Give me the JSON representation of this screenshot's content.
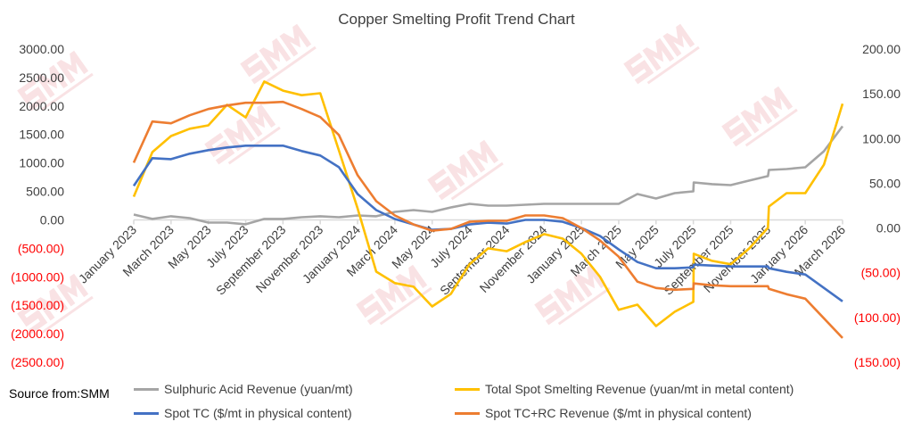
{
  "chart_data": {
    "type": "line",
    "title": "Copper Smelting Profit Trend Chart",
    "x_unit": "months since January 2023",
    "x_tick_labels": [
      "January 2023",
      "March 2023",
      "May 2023",
      "July 2023",
      "September 2023",
      "November 2023",
      "January 2024",
      "March 2024",
      "May 2024",
      "July 2024",
      "September 2024",
      "November 2024",
      "January 2025",
      "March 2025",
      "May 2025",
      "July 2025",
      "September 2025",
      "November 2025",
      "January 2026",
      "March 2026"
    ],
    "left_axis": {
      "min": -2500,
      "max": 3000,
      "step": 500,
      "labels": [
        "3000.00",
        "2500.00",
        "2000.00",
        "1500.00",
        "1000.00",
        "500.00",
        "0.00",
        "(500.00)",
        "(1000.00)",
        "(1500.00)",
        "(2000.00)",
        "(2500.00)"
      ]
    },
    "right_axis": {
      "min": -150,
      "max": 200,
      "step": 50,
      "labels": [
        "200.00",
        "150.00",
        "100.00",
        "50.00",
        "0.00",
        "(50.00)",
        "(100.00)",
        "(150.00)"
      ]
    },
    "series": [
      {
        "name": "Sulphuric Acid Revenue (yuan/mt)",
        "axis": "left",
        "color": "#A5A5A5",
        "points": [
          [
            0,
            94
          ],
          [
            1,
            16
          ],
          [
            2,
            63
          ],
          [
            3,
            31
          ],
          [
            4,
            -47
          ],
          [
            5,
            -47
          ],
          [
            6,
            -78
          ],
          [
            7,
            16
          ],
          [
            8,
            16
          ],
          [
            9,
            47
          ],
          [
            10,
            63
          ],
          [
            11,
            47
          ],
          [
            12,
            78
          ],
          [
            13,
            63
          ],
          [
            14,
            141
          ],
          [
            15,
            172
          ],
          [
            16,
            141
          ],
          [
            17,
            219
          ],
          [
            18,
            282
          ],
          [
            19,
            250
          ],
          [
            20,
            250
          ],
          [
            21,
            266
          ],
          [
            22,
            282
          ],
          [
            23,
            282
          ],
          [
            24,
            282
          ],
          [
            25,
            282
          ],
          [
            26,
            282
          ],
          [
            27,
            454
          ],
          [
            28,
            376
          ],
          [
            29,
            470
          ],
          [
            30,
            501
          ],
          [
            30.02,
            658
          ],
          [
            31,
            627
          ],
          [
            32,
            611
          ],
          [
            33,
            690
          ],
          [
            34,
            768
          ],
          [
            34.05,
            877
          ],
          [
            35,
            893
          ],
          [
            36,
            924
          ],
          [
            37,
            1206
          ],
          [
            38,
            1645
          ]
        ]
      },
      {
        "name": "Total Spot Smelting Revenue (yuan/mt in metal content)",
        "axis": "left",
        "color": "#FFC000",
        "points": [
          [
            0,
            407
          ],
          [
            1,
            1190
          ],
          [
            2,
            1473
          ],
          [
            3,
            1600
          ],
          [
            4,
            1660
          ],
          [
            5,
            2020
          ],
          [
            6,
            1800
          ],
          [
            7,
            2430
          ],
          [
            8,
            2270
          ],
          [
            9,
            2190
          ],
          [
            10,
            2225
          ],
          [
            11,
            1220
          ],
          [
            12,
            200
          ],
          [
            13,
            -910
          ],
          [
            14,
            -1110
          ],
          [
            15,
            -1175
          ],
          [
            16,
            -1520
          ],
          [
            17,
            -1300
          ],
          [
            18,
            -780
          ],
          [
            19,
            -500
          ],
          [
            20,
            -550
          ],
          [
            21,
            -390
          ],
          [
            22,
            -250
          ],
          [
            23,
            -330
          ],
          [
            24,
            -595
          ],
          [
            25,
            -1000
          ],
          [
            26,
            -1580
          ],
          [
            27,
            -1490
          ],
          [
            28,
            -1865
          ],
          [
            29,
            -1615
          ],
          [
            30,
            -1440
          ],
          [
            30.02,
            -595
          ],
          [
            31,
            -720
          ],
          [
            32,
            -780
          ],
          [
            33,
            -500
          ],
          [
            34,
            -140
          ],
          [
            34.05,
            235
          ],
          [
            35,
            470
          ],
          [
            36,
            470
          ],
          [
            37,
            970
          ],
          [
            38,
            2040
          ]
        ]
      },
      {
        "name": "Spot TC ($/mt in physical content)",
        "axis": "right",
        "color": "#4472C4",
        "points": [
          [
            0,
            47
          ],
          [
            1,
            78
          ],
          [
            2,
            77
          ],
          [
            3,
            83
          ],
          [
            4,
            87
          ],
          [
            5,
            90
          ],
          [
            6,
            92
          ],
          [
            7,
            92
          ],
          [
            8,
            92
          ],
          [
            9,
            86
          ],
          [
            10,
            81
          ],
          [
            11,
            68
          ],
          [
            12,
            38
          ],
          [
            13,
            20
          ],
          [
            14,
            10
          ],
          [
            15,
            4
          ],
          [
            16,
            -2
          ],
          [
            17,
            -1
          ],
          [
            18,
            4
          ],
          [
            19,
            6
          ],
          [
            20,
            5
          ],
          [
            21,
            9
          ],
          [
            22,
            9
          ],
          [
            23,
            7
          ],
          [
            24,
            0
          ],
          [
            25,
            -9
          ],
          [
            26,
            -24
          ],
          [
            27,
            -38
          ],
          [
            28,
            -45
          ],
          [
            29,
            -45
          ],
          [
            30,
            -44
          ],
          [
            30.02,
            -41
          ],
          [
            31,
            -42
          ],
          [
            32,
            -43
          ],
          [
            33,
            -43
          ],
          [
            34,
            -43
          ],
          [
            34.05,
            -45
          ],
          [
            35,
            -49
          ],
          [
            36,
            -52
          ],
          [
            38,
            -82
          ]
        ]
      },
      {
        "name": "Spot TC+RC Revenue ($/mt in physical content)",
        "axis": "right",
        "color": "#ED7D31",
        "points": [
          [
            0,
            73
          ],
          [
            1,
            119
          ],
          [
            2,
            117
          ],
          [
            3,
            126
          ],
          [
            4,
            133
          ],
          [
            5,
            137
          ],
          [
            6,
            140
          ],
          [
            7,
            140
          ],
          [
            8,
            141
          ],
          [
            9,
            133
          ],
          [
            10,
            124
          ],
          [
            11,
            104
          ],
          [
            12,
            59
          ],
          [
            13,
            30
          ],
          [
            14,
            14
          ],
          [
            15,
            4
          ],
          [
            16,
            -3
          ],
          [
            17,
            -1
          ],
          [
            18,
            7
          ],
          [
            19,
            8
          ],
          [
            20,
            8
          ],
          [
            21,
            14
          ],
          [
            22,
            14
          ],
          [
            23,
            11
          ],
          [
            24,
            0
          ],
          [
            25,
            -14
          ],
          [
            26,
            -32
          ],
          [
            27,
            -60
          ],
          [
            28,
            -67
          ],
          [
            29,
            -69
          ],
          [
            30,
            -68
          ],
          [
            30.02,
            -62
          ],
          [
            31,
            -64
          ],
          [
            32,
            -65
          ],
          [
            33,
            -65
          ],
          [
            34,
            -65
          ],
          [
            34.05,
            -68
          ],
          [
            35,
            -74
          ],
          [
            36,
            -79
          ],
          [
            38,
            -123
          ]
        ]
      }
    ],
    "legend_position": "bottom",
    "grid": false
  },
  "source": "Source from:SMM",
  "watermark": {
    "text": "SMM",
    "subtext": "Shanghai Metals Market"
  },
  "colors": {
    "negative_label": "#FF0000",
    "axis_text": "#404040",
    "watermark": "#F4C7CB"
  }
}
